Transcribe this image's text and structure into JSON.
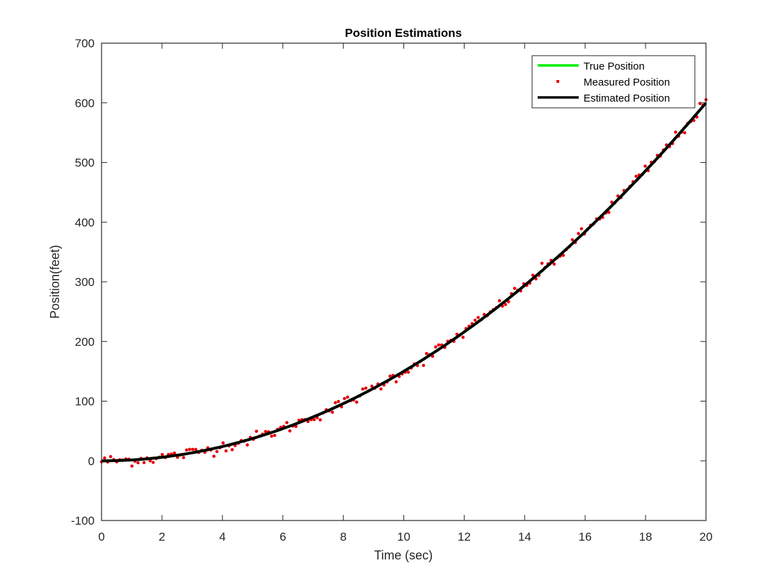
{
  "chart_data": {
    "type": "line",
    "title": "Position Estimations",
    "xlabel": "Time (sec)",
    "ylabel": "Position(feet)",
    "xlim": [
      0,
      20
    ],
    "ylim": [
      -100,
      700
    ],
    "xticks": [
      0,
      2,
      4,
      6,
      8,
      10,
      12,
      14,
      16,
      18,
      20
    ],
    "yticks": [
      -100,
      0,
      100,
      200,
      300,
      400,
      500,
      600,
      700
    ],
    "grid": false,
    "legend_position": "northeast",
    "series": [
      {
        "name": "True Position",
        "style": "line",
        "color": "#00ff00",
        "model": "1.5*t^2",
        "x": [
          0,
          1,
          2,
          3,
          4,
          5,
          6,
          7,
          8,
          9,
          10,
          11,
          12,
          13,
          14,
          15,
          16,
          17,
          18,
          19,
          20
        ],
        "y": [
          0,
          1.5,
          6,
          13.5,
          24,
          37.5,
          54,
          73.5,
          96,
          121.5,
          150,
          181.5,
          216,
          253.5,
          294,
          337.5,
          384,
          433.5,
          486,
          541.5,
          600
        ]
      },
      {
        "name": "Measured Position",
        "style": "markers",
        "color": "#e8000b",
        "samples": 200,
        "noise_sd": 5,
        "x_range": [
          0,
          20
        ]
      },
      {
        "name": "Estimated Position",
        "style": "line",
        "color": "#000000",
        "model": "1.5*t^2",
        "x": [
          0,
          1,
          2,
          3,
          4,
          5,
          6,
          7,
          8,
          9,
          10,
          11,
          12,
          13,
          14,
          15,
          16,
          17,
          18,
          19,
          20
        ],
        "y": [
          0,
          1.5,
          6,
          13.5,
          24,
          37.5,
          54,
          73.5,
          96,
          121.5,
          150,
          181.5,
          216,
          253.5,
          294,
          337.5,
          384,
          433.5,
          486,
          541.5,
          600
        ]
      }
    ]
  },
  "legend": {
    "items": [
      {
        "label": "True Position"
      },
      {
        "label": "Measured Position"
      },
      {
        "label": "Estimated Position"
      }
    ]
  },
  "colors": {
    "true": "#00ee00",
    "measured": "#e8000b",
    "estimated": "#000000",
    "axis": "#262626"
  }
}
